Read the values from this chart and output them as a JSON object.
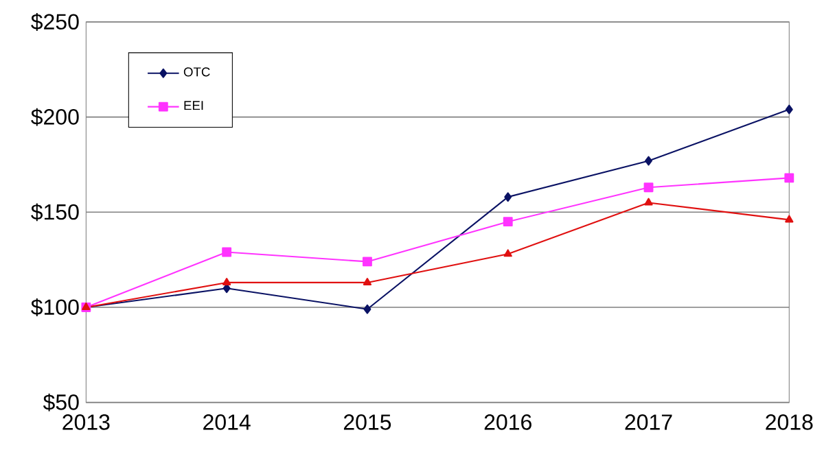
{
  "chart_data": {
    "type": "line",
    "x": [
      2013,
      2014,
      2015,
      2016,
      2017,
      2018
    ],
    "xlim": [
      2013,
      2018
    ],
    "xticks": [
      2013,
      2014,
      2015,
      2016,
      2017,
      2018
    ],
    "ylim": [
      50,
      250
    ],
    "yticks": [
      {
        "value": 50,
        "label": "$50"
      },
      {
        "value": 100,
        "label": "$100"
      },
      {
        "value": 150,
        "label": "$150"
      },
      {
        "value": 200,
        "label": "$200"
      },
      {
        "value": 250,
        "label": "$250"
      }
    ],
    "grid": "y",
    "legend": "top left",
    "series": [
      {
        "name": "OTC",
        "color": "#0a1264",
        "marker": "diamond",
        "values": [
          100,
          110,
          99,
          158,
          177,
          204
        ]
      },
      {
        "name": "EEI",
        "color": "#ff33ff",
        "marker": "square",
        "values": [
          100,
          129,
          124,
          145,
          163,
          168
        ]
      },
      {
        "color": "#e01010",
        "marker": "triangle",
        "values": [
          100,
          113,
          113,
          128,
          155,
          146
        ]
      }
    ]
  }
}
